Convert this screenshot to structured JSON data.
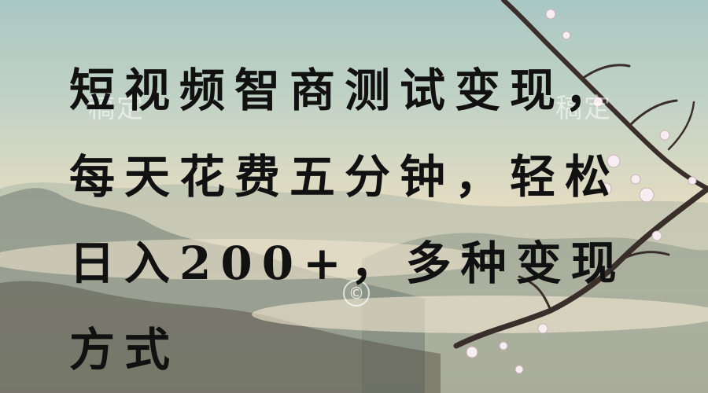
{
  "headline": "短视频智商测试变现，每天花费五分钟，轻松日入200+，多种变现方式",
  "watermarks": {
    "left": "稿定",
    "right": "稿定",
    "center": "©"
  },
  "colors": {
    "headline": "#111111",
    "blossom": "#f6eef0",
    "branch": "#3a2e2a",
    "mountain": "#5c6a63"
  }
}
